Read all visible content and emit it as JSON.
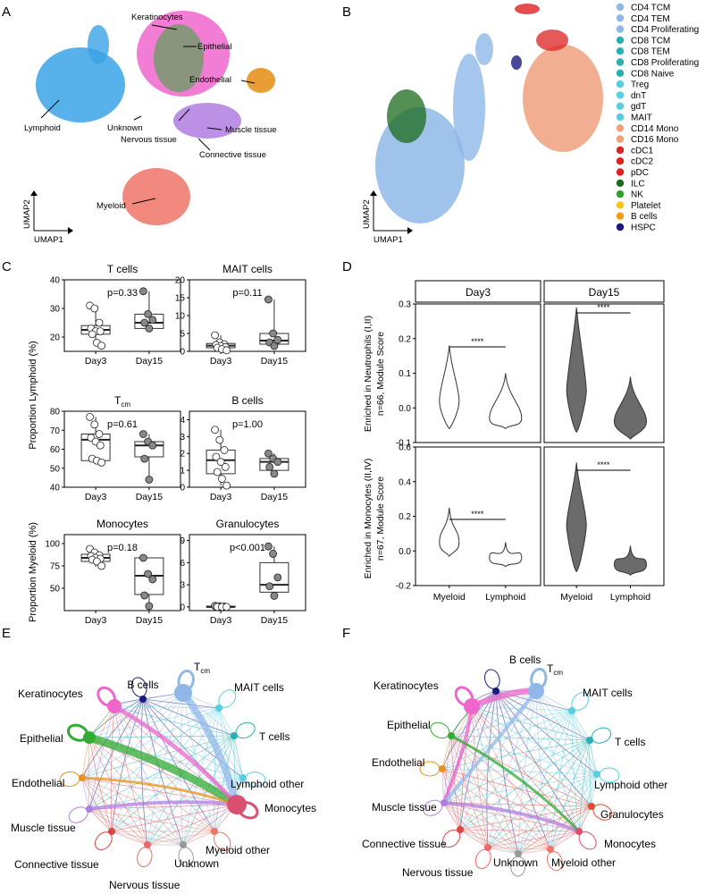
{
  "panels": {
    "a": {
      "letter": "A",
      "clusters": [
        "Keratinocytes",
        "Epithelial",
        "Endothelial",
        "Lymphoid",
        "Unknown",
        "Nervous tissue",
        "Muscle tissue",
        "Connective tissue",
        "Myeloid"
      ],
      "axis_y": "UMAP2",
      "axis_x": "UMAP1",
      "colors": {
        "lymphoid": "#3aa3e6",
        "keratinocytes": "#ee66cc",
        "epithelial": "#33aa33",
        "endothelial": "#e8921e",
        "muscle": "#b07ee0",
        "myeloid": "#f07468"
      }
    },
    "b": {
      "letter": "B",
      "axis_y": "UMAP2",
      "axis_x": "UMAP1",
      "legend": [
        {
          "label": "CD4 TCM",
          "color": "#8fb8e8"
        },
        {
          "label": "CD4 TEM",
          "color": "#8fb8e8"
        },
        {
          "label": "CD4 Proliferating",
          "color": "#8fb8e8"
        },
        {
          "label": "CD8 TCM",
          "color": "#2ab0b0"
        },
        {
          "label": "CD8 TEM",
          "color": "#2ab0b0"
        },
        {
          "label": "CD8 Proliferating",
          "color": "#2ab0b0"
        },
        {
          "label": "CD8 Naive",
          "color": "#2ab0b0"
        },
        {
          "label": "Treg",
          "color": "#56d0e0"
        },
        {
          "label": "dnT",
          "color": "#56d0e0"
        },
        {
          "label": "gdT",
          "color": "#56d0e0"
        },
        {
          "label": "MAIT",
          "color": "#56d0e0"
        },
        {
          "label": "CD14 Mono",
          "color": "#f0a07c"
        },
        {
          "label": "CD16 Mono",
          "color": "#f0a07c"
        },
        {
          "label": "cDC1",
          "color": "#dd2222"
        },
        {
          "label": "cDC2",
          "color": "#dd2222"
        },
        {
          "label": "pDC",
          "color": "#dd2222"
        },
        {
          "label": "ILC",
          "color": "#1b6b1b"
        },
        {
          "label": "NK",
          "color": "#2ea02e"
        },
        {
          "label": "Platelet",
          "color": "#f4c518"
        },
        {
          "label": "B cells",
          "color": "#f49a18"
        },
        {
          "label": "HSPC",
          "color": "#1a1a80"
        }
      ]
    },
    "c": {
      "letter": "C",
      "ylabel_top": "Proportion Lymphoid (%)",
      "ylabel_bottom": "Proportion Myeloid (%)",
      "groups": [
        "Day3",
        "Day15"
      ]
    },
    "d": {
      "letter": "D",
      "facets": [
        "Day3",
        "Day15"
      ],
      "row1_ylabel_a": "Enriched in Neutrophils (I,II)",
      "row1_ylabel_b": "n=66, Module Score",
      "row2_ylabel_a": "Enriched in Monocytes (II,IV)",
      "row2_ylabel_b": "n=67, Module Score",
      "sig": "****",
      "xcats": [
        "Myeloid",
        "Lymphoid",
        "Myeloid",
        "Lymphoid"
      ]
    },
    "e": {
      "letter": "E",
      "nodes": [
        "B cells",
        "T",
        "MAIT cells",
        "T cells",
        "Lymphoid other",
        "Monocytes",
        "Myeloid other",
        "Unknown",
        "Nervous tissue",
        "Connective tissue",
        "Muscle tissue",
        "Endothelial",
        "Epithelial",
        "Keratinocytes"
      ],
      "tcm_sub": "cm"
    },
    "f": {
      "letter": "F",
      "nodes": [
        "B cells",
        "T",
        "MAIT cells",
        "T cells",
        "Lymphoid other",
        "Granulocytes",
        "Monocytes",
        "Myeloid other",
        "Unknown",
        "Nervous tissue",
        "Connective tissue",
        "Muscle tissue",
        "Endothelial",
        "Epithelial",
        "Keratinocytes"
      ],
      "tcm_sub": "cm"
    }
  },
  "chart_data": [
    {
      "type": "box",
      "title": "T cells",
      "categories": [
        "Day3",
        "Day15"
      ],
      "ylim": [
        15,
        40
      ],
      "yticks": [
        20,
        30,
        40
      ],
      "pvalue": "p=0.33",
      "series": [
        {
          "name": "Day3",
          "q1": 21,
          "median": 22.5,
          "q3": 24,
          "min": 17,
          "max": 31,
          "points": [
            31,
            30,
            25,
            23,
            22,
            22,
            21,
            18,
            17
          ]
        },
        {
          "name": "Day15",
          "q1": 23,
          "median": 25,
          "q3": 28,
          "min": 22,
          "max": 36,
          "points": [
            36,
            28,
            26,
            25,
            23
          ]
        }
      ]
    },
    {
      "type": "box",
      "title": "MAIT cells",
      "categories": [
        "Day3",
        "Day15"
      ],
      "ylim": [
        0,
        20
      ],
      "yticks": [
        0,
        5,
        10,
        15,
        20
      ],
      "pvalue": "p=0.11",
      "series": [
        {
          "name": "Day3",
          "q1": 1,
          "median": 1.6,
          "q3": 2.2,
          "min": 0.3,
          "max": 4.5,
          "points": [
            4.5,
            2.5,
            2,
            1.8,
            1.5,
            1.2,
            1,
            0.6,
            0.3
          ]
        },
        {
          "name": "Day15",
          "q1": 2,
          "median": 3,
          "q3": 5,
          "min": 1,
          "max": 14.5,
          "points": [
            14.5,
            5,
            3.2,
            2.5,
            1.5
          ]
        }
      ]
    },
    {
      "type": "box",
      "title": "Tcm",
      "categories": [
        "Day3",
        "Day15"
      ],
      "ylim": [
        40,
        80
      ],
      "yticks": [
        40,
        50,
        60,
        70,
        80
      ],
      "pvalue": "p=0.61",
      "series": [
        {
          "name": "Day3",
          "q1": 54,
          "median": 65,
          "q3": 68,
          "min": 53,
          "max": 77,
          "points": [
            77,
            73,
            68,
            66,
            64,
            62,
            55,
            54,
            53
          ]
        },
        {
          "name": "Day15",
          "q1": 56,
          "median": 62,
          "q3": 64,
          "min": 44,
          "max": 68,
          "points": [
            68,
            64,
            62,
            55,
            44
          ]
        }
      ]
    },
    {
      "type": "box",
      "title": "B cells",
      "categories": [
        "Day3",
        "Day15"
      ],
      "ylim": [
        0,
        4.5
      ],
      "yticks": [
        0,
        1,
        2,
        3,
        4
      ],
      "pvalue": "p=1.00",
      "series": [
        {
          "name": "Day3",
          "q1": 0.8,
          "median": 1.6,
          "q3": 2.2,
          "min": 0.1,
          "max": 3.4,
          "points": [
            3.4,
            2.8,
            2.2,
            1.8,
            1.5,
            1.2,
            0.9,
            0.5,
            0.1
          ]
        },
        {
          "name": "Day15",
          "q1": 1.0,
          "median": 1.5,
          "q3": 1.7,
          "min": 0.6,
          "max": 2.0,
          "points": [
            2.0,
            1.7,
            1.5,
            1.2,
            0.8
          ]
        }
      ]
    },
    {
      "type": "box",
      "title": "Monocytes",
      "categories": [
        "Day3",
        "Day15"
      ],
      "ylim": [
        25,
        110
      ],
      "yticks": [
        50,
        75,
        100
      ],
      "pvalue": "p=0.18",
      "series": [
        {
          "name": "Day3",
          "q1": 80,
          "median": 84,
          "q3": 88,
          "min": 74,
          "max": 94,
          "points": [
            94,
            90,
            87,
            86,
            84,
            83,
            82,
            80,
            75
          ]
        },
        {
          "name": "Day15",
          "q1": 43,
          "median": 64,
          "q3": 84,
          "min": 30,
          "max": 84,
          "points": [
            84,
            66,
            60,
            42,
            30
          ]
        }
      ]
    },
    {
      "type": "box",
      "title": "Granulocytes",
      "categories": [
        "Day3",
        "Day15"
      ],
      "ylim": [
        -0.5,
        9.8
      ],
      "yticks": [
        0,
        3,
        6,
        9
      ],
      "pvalue": "p<0.001",
      "series": [
        {
          "name": "Day3",
          "q1": 0,
          "median": 0,
          "q3": 0.1,
          "min": 0,
          "max": 0.2,
          "points": [
            0.15,
            0.1,
            0.05,
            0.05,
            0,
            0,
            0,
            0,
            0
          ]
        },
        {
          "name": "Day15",
          "q1": 2,
          "median": 3,
          "q3": 6,
          "min": 1.2,
          "max": 8.2,
          "points": [
            8.2,
            7.2,
            4,
            2.8,
            1.5
          ]
        }
      ]
    },
    {
      "type": "violin",
      "title": "Day3 neutrophil module",
      "categories": [
        "Myeloid",
        "Lymphoid"
      ],
      "ylim": [
        -0.1,
        0.3
      ],
      "yticks": [
        -0.1,
        0.0,
        0.1,
        0.2,
        0.3
      ],
      "series": [
        {
          "name": "Myeloid",
          "min": -0.06,
          "max": 0.18,
          "mode": 0.02
        },
        {
          "name": "Lymphoid",
          "min": -0.06,
          "max": 0.1,
          "mode": -0.03
        }
      ]
    },
    {
      "type": "violin",
      "title": "Day15 neutrophil module",
      "categories": [
        "Myeloid",
        "Lymphoid"
      ],
      "ylim": [
        -0.1,
        0.3
      ],
      "yticks": [
        -0.1,
        0.0,
        0.1,
        0.2,
        0.3
      ],
      "series": [
        {
          "name": "Myeloid",
          "min": -0.07,
          "max": 0.29,
          "mode": 0.05
        },
        {
          "name": "Lymphoid",
          "min": -0.09,
          "max": 0.09,
          "mode": -0.04
        }
      ]
    },
    {
      "type": "violin",
      "title": "Day3 monocyte module",
      "categories": [
        "Myeloid",
        "Lymphoid"
      ],
      "ylim": [
        -0.2,
        0.6
      ],
      "yticks": [
        -0.2,
        0.0,
        0.2,
        0.4,
        0.6
      ],
      "series": [
        {
          "name": "Myeloid",
          "min": -0.03,
          "max": 0.25,
          "mode": 0.05
        },
        {
          "name": "Lymphoid",
          "min": -0.09,
          "max": 0.05,
          "mode": -0.04
        }
      ]
    },
    {
      "type": "violin",
      "title": "Day15 monocyte module",
      "categories": [
        "Myeloid",
        "Lymphoid"
      ],
      "ylim": [
        -0.2,
        0.6
      ],
      "yticks": [
        -0.2,
        0.0,
        0.2,
        0.4,
        0.6
      ],
      "series": [
        {
          "name": "Myeloid",
          "min": -0.12,
          "max": 0.51,
          "mode": 0.15
        },
        {
          "name": "Lymphoid",
          "min": -0.14,
          "max": 0.03,
          "mode": -0.08
        }
      ]
    }
  ]
}
